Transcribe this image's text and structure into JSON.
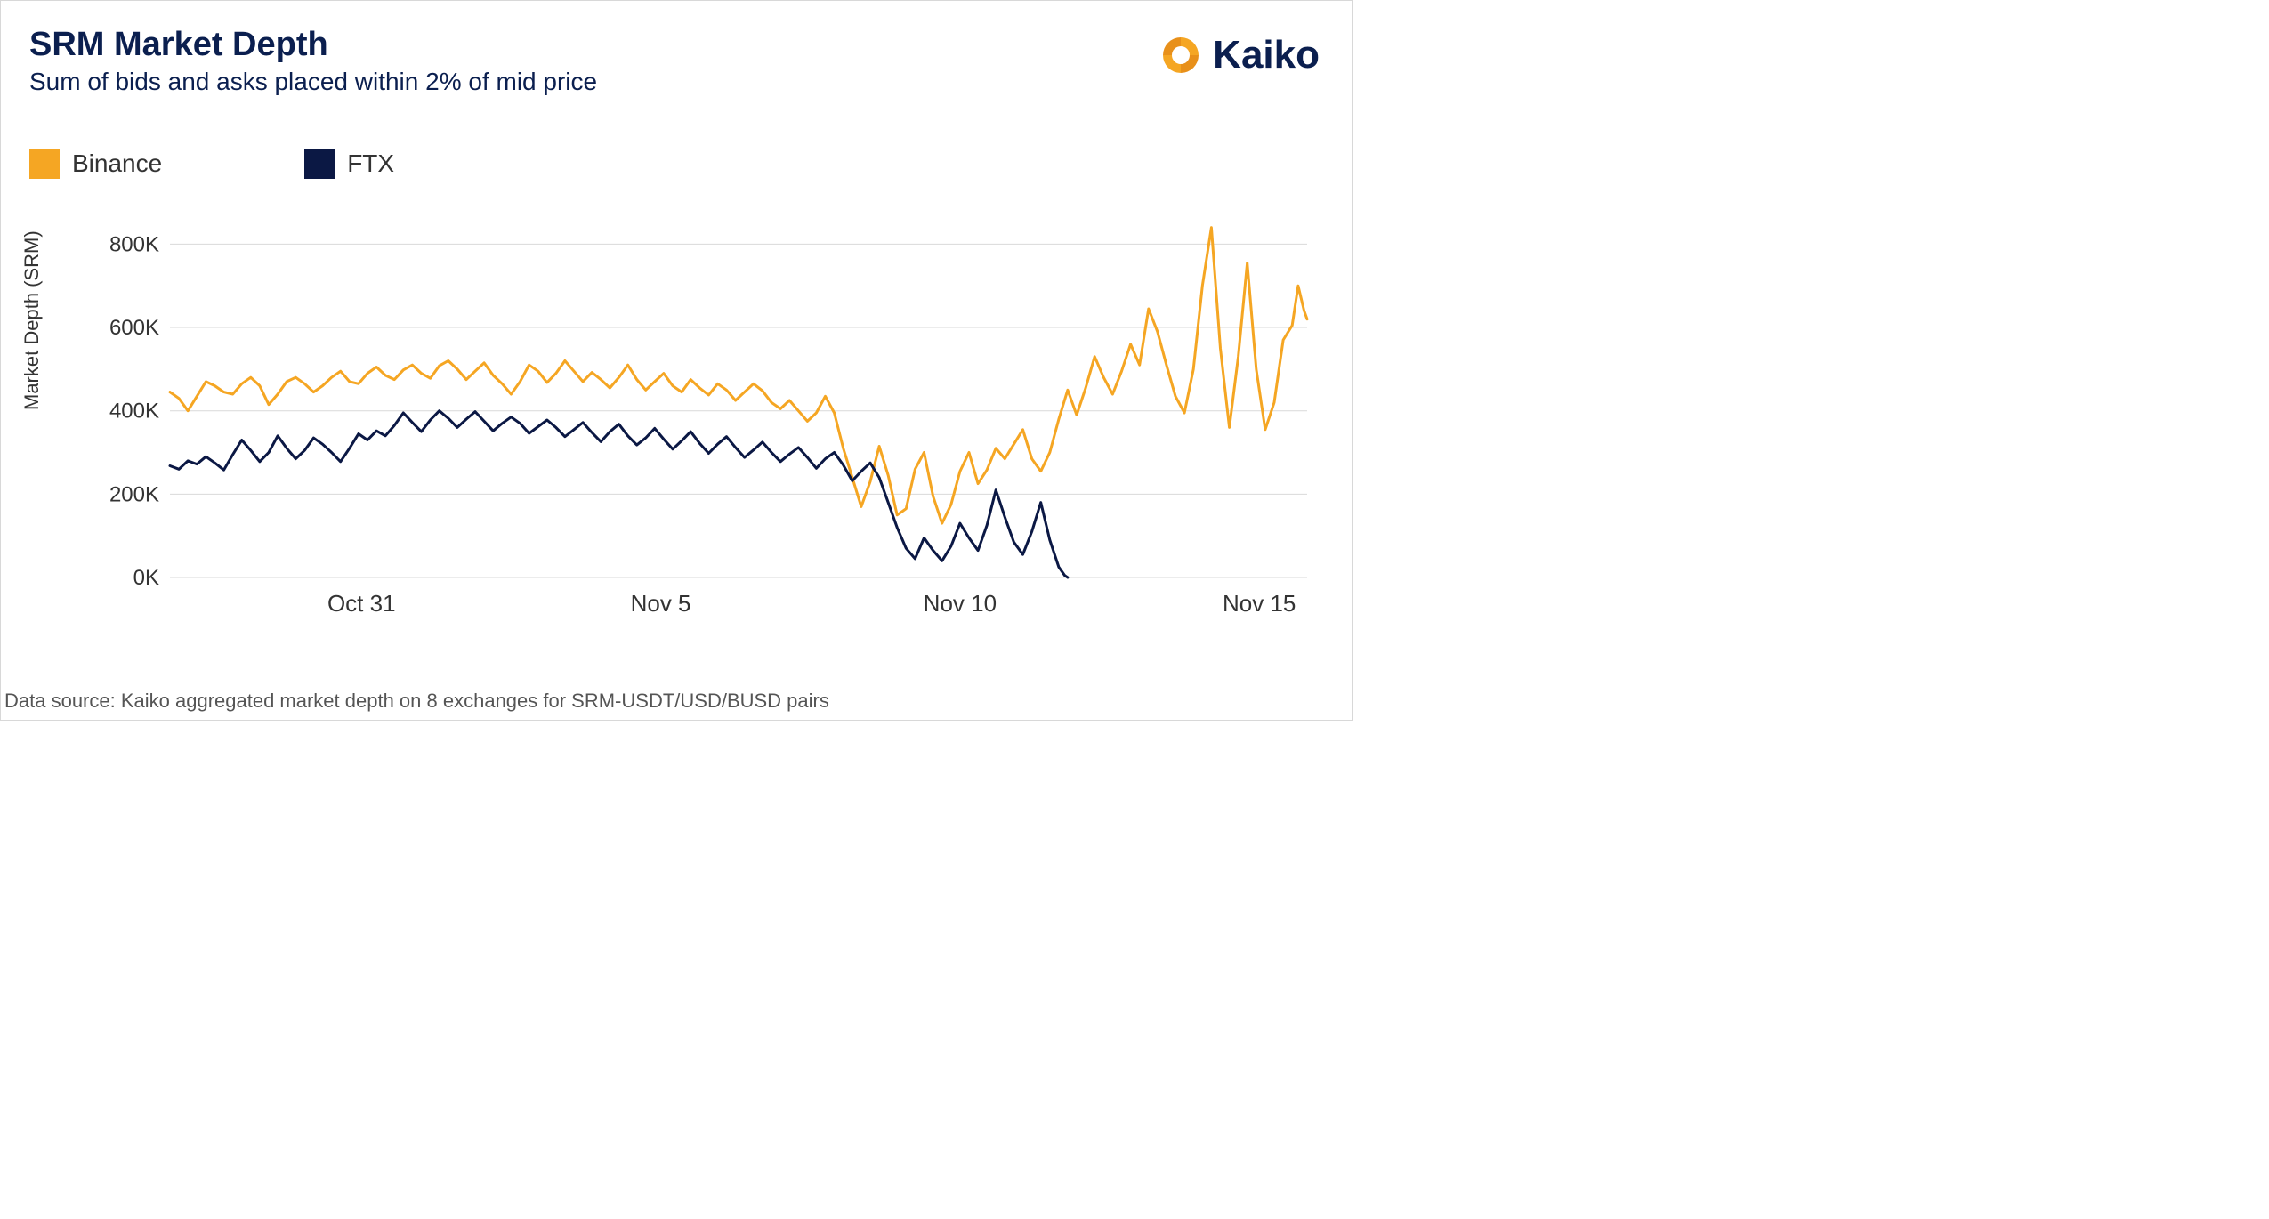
{
  "chart": {
    "type": "line",
    "title": "SRM Market Depth",
    "subtitle": "Sum of bids and asks placed within 2% of mid price",
    "ylabel": "Market Depth (SRM)",
    "footer": "Data source: Kaiko aggregated market depth on 8 exchanges for SRM-USDT/USD/BUSD pairs",
    "brand": "Kaiko",
    "colors": {
      "title": "#0b1f4f",
      "grid": "#d9d9d9",
      "axis_text": "#333333",
      "background": "#ffffff",
      "series1": "#f5a623",
      "series2": "#0b1844",
      "logo_primary": "#f5a623",
      "logo_secondary": "#0b1f4f"
    },
    "line_width": 3,
    "x_domain": [
      0,
      19
    ],
    "x_ticks": [
      {
        "x": 3.2,
        "label": "Oct 31"
      },
      {
        "x": 8.2,
        "label": "Nov 5"
      },
      {
        "x": 13.2,
        "label": "Nov 10"
      },
      {
        "x": 18.2,
        "label": "Nov 15"
      }
    ],
    "y_domain": [
      0,
      850
    ],
    "y_ticks": [
      {
        "y": 0,
        "label": "0K"
      },
      {
        "y": 200,
        "label": "200K"
      },
      {
        "y": 400,
        "label": "400K"
      },
      {
        "y": 600,
        "label": "600K"
      },
      {
        "y": 800,
        "label": "800K"
      }
    ],
    "series": [
      {
        "name": "Binance",
        "color_key": "series1",
        "points": [
          [
            0.0,
            445
          ],
          [
            0.15,
            430
          ],
          [
            0.3,
            400
          ],
          [
            0.45,
            435
          ],
          [
            0.6,
            470
          ],
          [
            0.75,
            460
          ],
          [
            0.9,
            445
          ],
          [
            1.05,
            440
          ],
          [
            1.2,
            465
          ],
          [
            1.35,
            480
          ],
          [
            1.5,
            460
          ],
          [
            1.65,
            415
          ],
          [
            1.8,
            440
          ],
          [
            1.95,
            470
          ],
          [
            2.1,
            480
          ],
          [
            2.25,
            465
          ],
          [
            2.4,
            445
          ],
          [
            2.55,
            460
          ],
          [
            2.7,
            480
          ],
          [
            2.85,
            495
          ],
          [
            3.0,
            470
          ],
          [
            3.15,
            465
          ],
          [
            3.3,
            490
          ],
          [
            3.45,
            505
          ],
          [
            3.6,
            485
          ],
          [
            3.75,
            475
          ],
          [
            3.9,
            498
          ],
          [
            4.05,
            510
          ],
          [
            4.2,
            490
          ],
          [
            4.35,
            478
          ],
          [
            4.5,
            508
          ],
          [
            4.65,
            520
          ],
          [
            4.8,
            500
          ],
          [
            4.95,
            475
          ],
          [
            5.1,
            495
          ],
          [
            5.25,
            515
          ],
          [
            5.4,
            485
          ],
          [
            5.55,
            465
          ],
          [
            5.7,
            440
          ],
          [
            5.85,
            470
          ],
          [
            6.0,
            510
          ],
          [
            6.15,
            495
          ],
          [
            6.3,
            468
          ],
          [
            6.45,
            490
          ],
          [
            6.6,
            520
          ],
          [
            6.75,
            495
          ],
          [
            6.9,
            470
          ],
          [
            7.05,
            492
          ],
          [
            7.2,
            475
          ],
          [
            7.35,
            455
          ],
          [
            7.5,
            480
          ],
          [
            7.65,
            510
          ],
          [
            7.8,
            475
          ],
          [
            7.95,
            450
          ],
          [
            8.1,
            470
          ],
          [
            8.25,
            490
          ],
          [
            8.4,
            460
          ],
          [
            8.55,
            445
          ],
          [
            8.7,
            475
          ],
          [
            8.85,
            455
          ],
          [
            9.0,
            438
          ],
          [
            9.15,
            465
          ],
          [
            9.3,
            450
          ],
          [
            9.45,
            425
          ],
          [
            9.6,
            445
          ],
          [
            9.75,
            465
          ],
          [
            9.9,
            448
          ],
          [
            10.05,
            420
          ],
          [
            10.2,
            405
          ],
          [
            10.35,
            425
          ],
          [
            10.5,
            400
          ],
          [
            10.65,
            375
          ],
          [
            10.8,
            395
          ],
          [
            10.95,
            435
          ],
          [
            11.1,
            395
          ],
          [
            11.25,
            310
          ],
          [
            11.4,
            240
          ],
          [
            11.55,
            170
          ],
          [
            11.7,
            230
          ],
          [
            11.85,
            315
          ],
          [
            12.0,
            245
          ],
          [
            12.15,
            150
          ],
          [
            12.3,
            165
          ],
          [
            12.45,
            260
          ],
          [
            12.6,
            300
          ],
          [
            12.75,
            195
          ],
          [
            12.9,
            130
          ],
          [
            13.05,
            175
          ],
          [
            13.2,
            255
          ],
          [
            13.35,
            300
          ],
          [
            13.5,
            225
          ],
          [
            13.65,
            258
          ],
          [
            13.8,
            310
          ],
          [
            13.95,
            285
          ],
          [
            14.1,
            320
          ],
          [
            14.25,
            355
          ],
          [
            14.4,
            285
          ],
          [
            14.55,
            255
          ],
          [
            14.7,
            300
          ],
          [
            14.85,
            380
          ],
          [
            15.0,
            450
          ],
          [
            15.15,
            390
          ],
          [
            15.3,
            455
          ],
          [
            15.45,
            530
          ],
          [
            15.6,
            480
          ],
          [
            15.75,
            440
          ],
          [
            15.9,
            495
          ],
          [
            16.05,
            560
          ],
          [
            16.2,
            510
          ],
          [
            16.35,
            645
          ],
          [
            16.5,
            590
          ],
          [
            16.65,
            510
          ],
          [
            16.8,
            435
          ],
          [
            16.95,
            395
          ],
          [
            17.1,
            500
          ],
          [
            17.25,
            700
          ],
          [
            17.4,
            840
          ],
          [
            17.55,
            550
          ],
          [
            17.7,
            360
          ],
          [
            17.85,
            530
          ],
          [
            18.0,
            755
          ],
          [
            18.15,
            500
          ],
          [
            18.3,
            355
          ],
          [
            18.45,
            420
          ],
          [
            18.6,
            570
          ],
          [
            18.75,
            605
          ],
          [
            18.85,
            700
          ],
          [
            18.95,
            640
          ],
          [
            19.0,
            620
          ]
        ]
      },
      {
        "name": "FTX",
        "color_key": "series2",
        "points": [
          [
            0.0,
            268
          ],
          [
            0.15,
            260
          ],
          [
            0.3,
            280
          ],
          [
            0.45,
            272
          ],
          [
            0.6,
            290
          ],
          [
            0.75,
            275
          ],
          [
            0.9,
            258
          ],
          [
            1.05,
            295
          ],
          [
            1.2,
            330
          ],
          [
            1.35,
            305
          ],
          [
            1.5,
            278
          ],
          [
            1.65,
            300
          ],
          [
            1.8,
            340
          ],
          [
            1.95,
            310
          ],
          [
            2.1,
            285
          ],
          [
            2.25,
            305
          ],
          [
            2.4,
            335
          ],
          [
            2.55,
            320
          ],
          [
            2.7,
            300
          ],
          [
            2.85,
            278
          ],
          [
            3.0,
            310
          ],
          [
            3.15,
            345
          ],
          [
            3.3,
            330
          ],
          [
            3.45,
            352
          ],
          [
            3.6,
            340
          ],
          [
            3.75,
            365
          ],
          [
            3.9,
            395
          ],
          [
            4.05,
            372
          ],
          [
            4.2,
            350
          ],
          [
            4.35,
            378
          ],
          [
            4.5,
            400
          ],
          [
            4.65,
            382
          ],
          [
            4.8,
            360
          ],
          [
            4.95,
            380
          ],
          [
            5.1,
            398
          ],
          [
            5.25,
            375
          ],
          [
            5.4,
            352
          ],
          [
            5.55,
            370
          ],
          [
            5.7,
            385
          ],
          [
            5.85,
            370
          ],
          [
            6.0,
            346
          ],
          [
            6.15,
            362
          ],
          [
            6.3,
            378
          ],
          [
            6.45,
            360
          ],
          [
            6.6,
            338
          ],
          [
            6.75,
            355
          ],
          [
            6.9,
            372
          ],
          [
            7.05,
            348
          ],
          [
            7.2,
            326
          ],
          [
            7.35,
            350
          ],
          [
            7.5,
            368
          ],
          [
            7.65,
            340
          ],
          [
            7.8,
            318
          ],
          [
            7.95,
            335
          ],
          [
            8.1,
            358
          ],
          [
            8.25,
            332
          ],
          [
            8.4,
            308
          ],
          [
            8.55,
            328
          ],
          [
            8.7,
            350
          ],
          [
            8.85,
            322
          ],
          [
            9.0,
            298
          ],
          [
            9.15,
            320
          ],
          [
            9.3,
            338
          ],
          [
            9.45,
            312
          ],
          [
            9.6,
            288
          ],
          [
            9.75,
            306
          ],
          [
            9.9,
            325
          ],
          [
            10.05,
            300
          ],
          [
            10.2,
            278
          ],
          [
            10.35,
            296
          ],
          [
            10.5,
            312
          ],
          [
            10.65,
            288
          ],
          [
            10.8,
            262
          ],
          [
            10.95,
            285
          ],
          [
            11.1,
            300
          ],
          [
            11.25,
            270
          ],
          [
            11.4,
            232
          ],
          [
            11.55,
            255
          ],
          [
            11.7,
            275
          ],
          [
            11.85,
            240
          ],
          [
            12.0,
            180
          ],
          [
            12.15,
            120
          ],
          [
            12.3,
            70
          ],
          [
            12.45,
            45
          ],
          [
            12.6,
            95
          ],
          [
            12.75,
            65
          ],
          [
            12.9,
            40
          ],
          [
            13.05,
            75
          ],
          [
            13.2,
            130
          ],
          [
            13.35,
            95
          ],
          [
            13.5,
            65
          ],
          [
            13.65,
            125
          ],
          [
            13.8,
            210
          ],
          [
            13.95,
            145
          ],
          [
            14.1,
            85
          ],
          [
            14.25,
            55
          ],
          [
            14.4,
            110
          ],
          [
            14.55,
            180
          ],
          [
            14.7,
            90
          ],
          [
            14.85,
            25
          ],
          [
            14.95,
            5
          ],
          [
            15.0,
            0
          ]
        ]
      }
    ]
  }
}
